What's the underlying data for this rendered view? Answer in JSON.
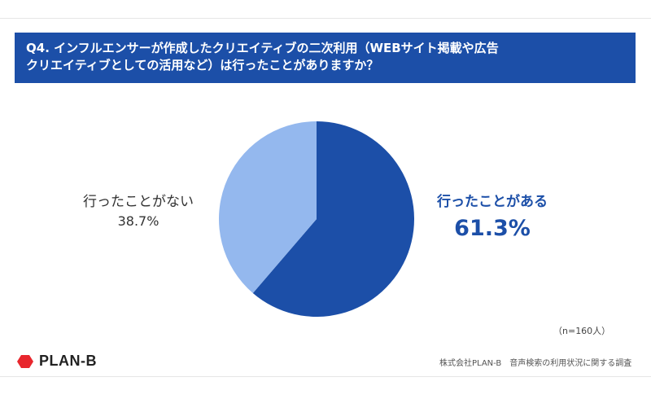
{
  "title": {
    "line1": "Q4. インフルエンサーが作成したクリエイティブの二次利用（WEBサイト掲載や広告",
    "line2": "クリエイティブとしての活用など）は行ったことがありますか？"
  },
  "chart_data": {
    "type": "pie",
    "title": "Q4. インフルエンサーが作成したクリエイティブの二次利用（WEBサイト掲載や広告クリエイティブとしての活用など）は行ったことがありますか？",
    "slices": [
      {
        "label": "行ったことがある",
        "value": 61.3,
        "value_label": "61.3%",
        "color": "#1c4fa8"
      },
      {
        "label": "行ったことがない",
        "value": 38.7,
        "value_label": "38.7%",
        "color": "#94b8ee"
      }
    ],
    "legend": "none"
  },
  "sample_note": "（n=160人）",
  "logo": {
    "name": "red-diamond-icon",
    "text": "PLAN-B",
    "color": "#e8262d"
  },
  "source": "株式会社PLAN-B　音声検索の利用状況に関する調査"
}
